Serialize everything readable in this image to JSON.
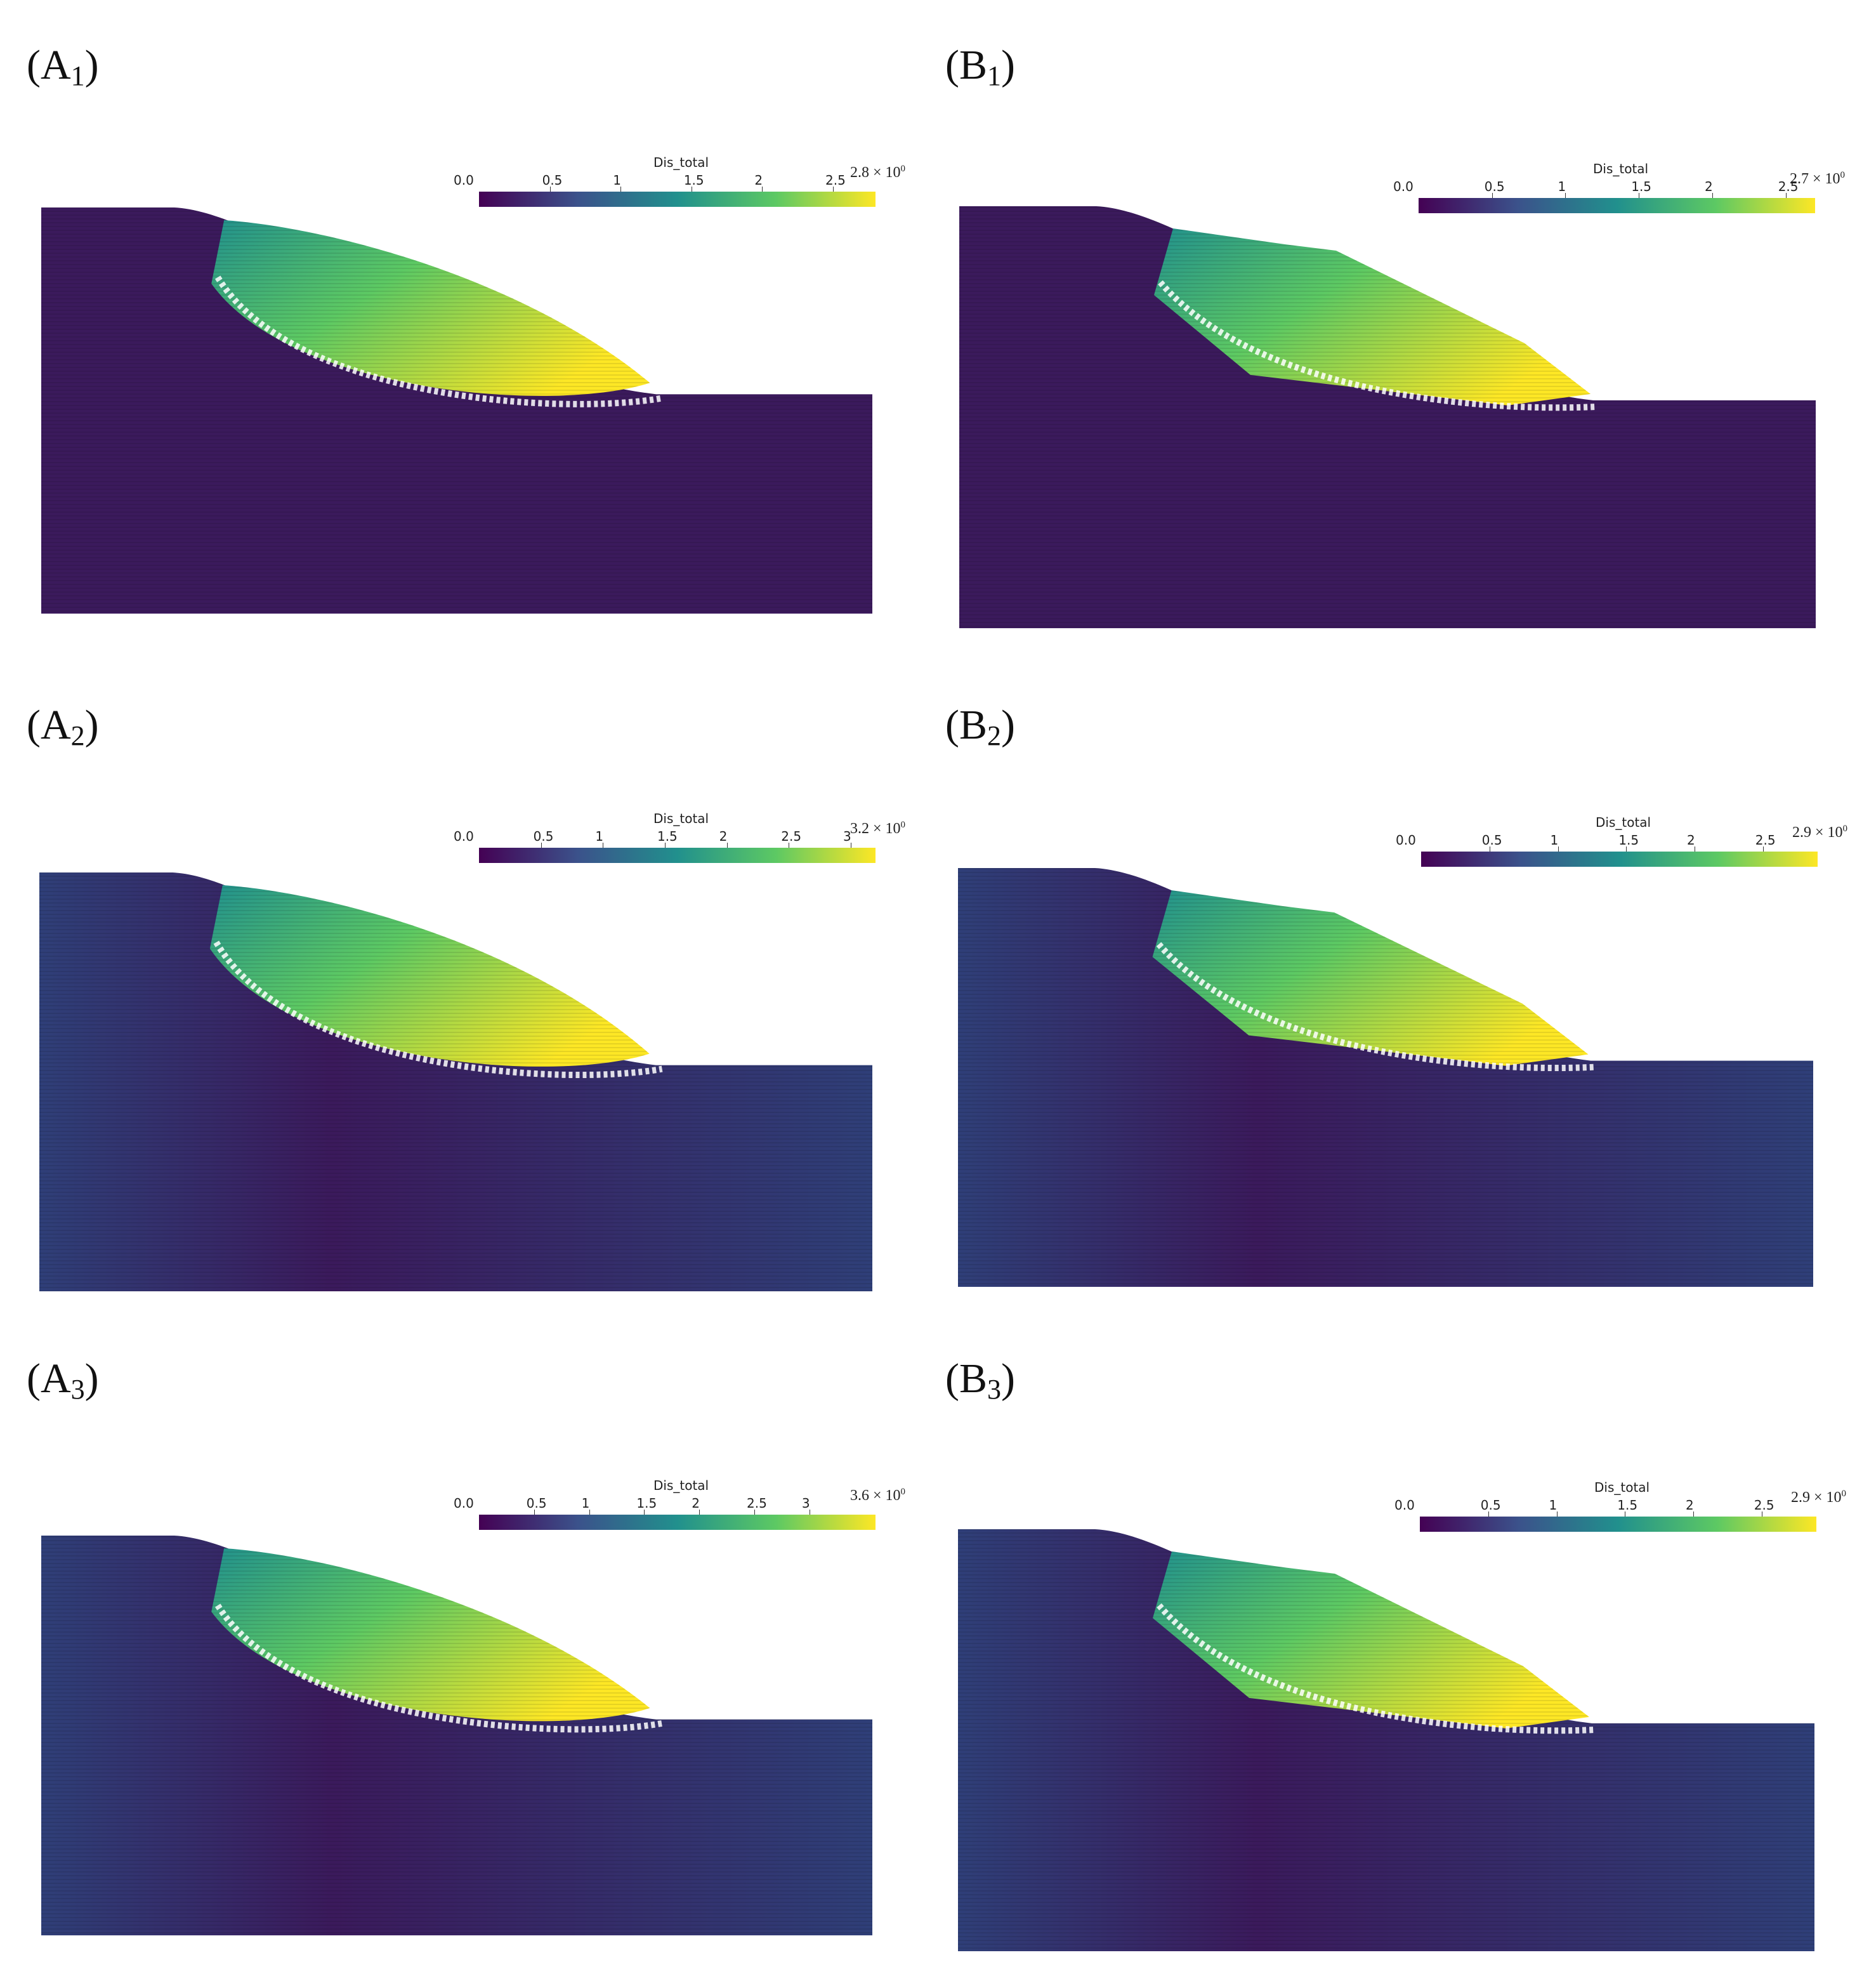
{
  "colors": {
    "viridis": [
      "#440154",
      "#3b528b",
      "#21908d",
      "#5dc963",
      "#fde725"
    ],
    "domain_low": "#3b1a5c",
    "domain_mid": "#2f3f78"
  },
  "panels": [
    {
      "id": "A1",
      "letter": "A",
      "subscript": "1",
      "colorbar": {
        "title": "Dis_total",
        "min": 0.0,
        "max": 2.8,
        "max_label": "2.8 × 10",
        "max_exp": "0",
        "ticks": [
          "0.0",
          "0.5",
          "1",
          "1.5",
          "2",
          "2.5"
        ],
        "tick_values": [
          0,
          0.5,
          1,
          1.5,
          2,
          2.5
        ]
      },
      "mode": "smooth"
    },
    {
      "id": "B1",
      "letter": "B",
      "subscript": "1",
      "colorbar": {
        "title": "Dis_total",
        "min": 0.0,
        "max": 2.7,
        "max_label": "2.7 × 10",
        "max_exp": "0",
        "ticks": [
          "0.0",
          "0.5",
          "1",
          "1.5",
          "2",
          "2.5"
        ],
        "tick_values": [
          0,
          0.5,
          1,
          1.5,
          2,
          2.5
        ]
      },
      "mode": "blocky"
    },
    {
      "id": "A2",
      "letter": "A",
      "subscript": "2",
      "colorbar": {
        "title": "Dis_total",
        "min": 0.0,
        "max": 3.2,
        "max_label": "3.2 × 10",
        "max_exp": "0",
        "ticks": [
          "0.0",
          "0.5",
          "1",
          "1.5",
          "2",
          "2.5",
          "3"
        ],
        "tick_values": [
          0,
          0.5,
          1,
          1.5,
          2,
          2.5,
          3
        ]
      },
      "mode": "smooth"
    },
    {
      "id": "B2",
      "letter": "B",
      "subscript": "2",
      "colorbar": {
        "title": "Dis_total",
        "min": 0.0,
        "max": 2.9,
        "max_label": "2.9 × 10",
        "max_exp": "0",
        "ticks": [
          "0.0",
          "0.5",
          "1",
          "1.5",
          "2",
          "2.5"
        ],
        "tick_values": [
          0,
          0.5,
          1,
          1.5,
          2,
          2.5
        ]
      },
      "mode": "blocky"
    },
    {
      "id": "A3",
      "letter": "A",
      "subscript": "3",
      "colorbar": {
        "title": "Dis_total",
        "min": 0.0,
        "max": 3.6,
        "max_label": "3.6 × 10",
        "max_exp": "0",
        "ticks": [
          "0.0",
          "0.5",
          "1",
          "1.5",
          "2",
          "2.5",
          "3"
        ],
        "tick_values": [
          0,
          0.5,
          1,
          1.5,
          2,
          2.5,
          3
        ]
      },
      "mode": "smooth"
    },
    {
      "id": "B3",
      "letter": "B",
      "subscript": "3",
      "colorbar": {
        "title": "Dis_total",
        "min": 0.0,
        "max": 2.9,
        "max_label": "2.9 × 10",
        "max_exp": "0",
        "ticks": [
          "0.0",
          "0.5",
          "1",
          "1.5",
          "2",
          "2.5"
        ],
        "tick_values": [
          0,
          0.5,
          1,
          1.5,
          2,
          2.5
        ]
      },
      "mode": "blocky"
    }
  ]
}
